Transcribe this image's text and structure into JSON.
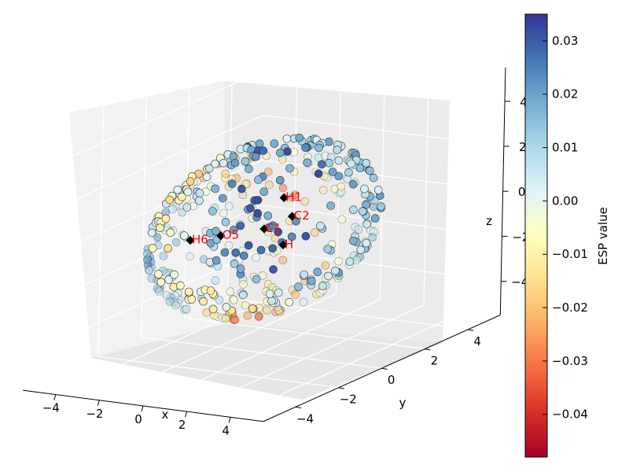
{
  "chart_data": {
    "type": "scatter",
    "projection": "3d",
    "xlabel": "x",
    "ylabel": "y",
    "zlabel": "z",
    "xlim": [
      -5,
      5
    ],
    "ylim": [
      -5,
      5
    ],
    "zlim": [
      -5,
      5
    ],
    "x_ticks": [
      "−4",
      "−2",
      "0",
      "2",
      "4"
    ],
    "y_ticks": [
      "−4",
      "−2",
      "0",
      "2",
      "4"
    ],
    "z_ticks": [
      "−4",
      "−2",
      "0",
      "2",
      "4"
    ],
    "grid": true,
    "colorbar": {
      "label": "ESP value",
      "min": -0.048,
      "max": 0.035,
      "colormap": "RdYlBu",
      "ticks": [
        "0.03",
        "0.02",
        "0.01",
        "0.00",
        "−0.01",
        "−0.02",
        "−0.03",
        "−0.04"
      ],
      "tick_values": [
        0.03,
        0.02,
        0.01,
        0.0,
        -0.01,
        -0.02,
        -0.03,
        -0.04
      ]
    },
    "atoms": [
      {
        "label": "H1",
        "x": 0.0,
        "y": 0.9,
        "z": 1.0
      },
      {
        "label": "C1",
        "x": 0.0,
        "y": 0.0,
        "z": 0.0
      },
      {
        "label": "C2",
        "x": 0.0,
        "y": 1.3,
        "z": 0.0
      },
      {
        "label": "O5",
        "x": -1.0,
        "y": -1.0,
        "z": 0.0
      },
      {
        "label": "H6",
        "x": -1.9,
        "y": -1.5,
        "z": -0.1
      },
      {
        "label": "H",
        "x": 0.0,
        "y": 0.9,
        "z": -1.1
      }
    ],
    "surface_points": {
      "count": 420,
      "shape": "ellipsoid",
      "center": [
        0,
        0,
        0
      ],
      "radii_data_units": [
        3.4,
        4.2,
        3.6
      ],
      "value_range": [
        -0.045,
        0.032
      ]
    }
  }
}
